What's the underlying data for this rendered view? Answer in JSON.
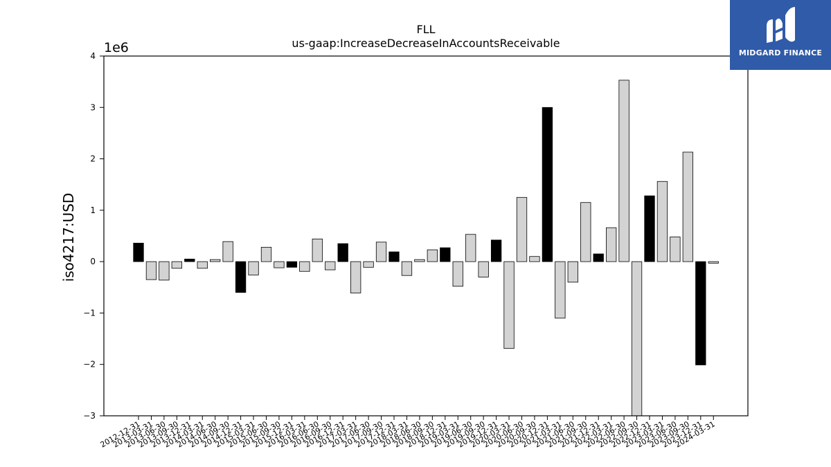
{
  "chart_data": {
    "type": "bar",
    "title": "FLL",
    "subtitle": "us-gaap:IncreaseDecreaseInAccountsReceivable",
    "ylabel": "iso4217:USD",
    "y_offset_label": "1e6",
    "ylim": [
      -3,
      4
    ],
    "y_ticks": [
      -3,
      -2,
      -1,
      0,
      1,
      2,
      3,
      4
    ],
    "y_tick_labels": [
      "−3",
      "−2",
      "−1",
      "0",
      "1",
      "2",
      "3",
      "4"
    ],
    "grid": false,
    "colors": {
      "annual": "#000000",
      "quarterly": "#d3d3d3",
      "edge": "#000000"
    },
    "categories": [
      "2012-12-31",
      "2013-03-31",
      "2013-06-30",
      "2013-09-30",
      "2013-12-31",
      "2014-03-31",
      "2014-06-30",
      "2014-09-30",
      "2014-12-31",
      "2015-03-31",
      "2015-06-30",
      "2015-09-30",
      "2015-12-31",
      "2016-03-31",
      "2016-06-30",
      "2016-09-30",
      "2016-12-31",
      "2017-03-31",
      "2017-06-30",
      "2017-09-30",
      "2017-12-31",
      "2018-03-31",
      "2018-06-30",
      "2018-09-30",
      "2018-12-31",
      "2019-03-31",
      "2019-06-30",
      "2019-09-30",
      "2019-12-31",
      "2020-03-31",
      "2020-06-30",
      "2020-09-30",
      "2020-12-31",
      "2021-03-31",
      "2021-06-30",
      "2021-09-30",
      "2021-12-31",
      "2022-03-31",
      "2022-06-30",
      "2022-09-30",
      "2022-12-31",
      "2023-03-31",
      "2023-06-30",
      "2023-09-30",
      "2023-12-31",
      "2024-03-31"
    ],
    "values": [
      0.36,
      -0.35,
      -0.36,
      -0.13,
      0.05,
      -0.13,
      0.04,
      0.39,
      -0.6,
      -0.26,
      0.28,
      -0.12,
      -0.11,
      -0.19,
      0.44,
      -0.16,
      0.35,
      -0.61,
      -0.11,
      0.38,
      0.19,
      -0.27,
      0.04,
      0.23,
      0.27,
      -0.48,
      0.53,
      -0.3,
      0.42,
      -1.69,
      1.25,
      0.1,
      3.0,
      -1.1,
      -0.4,
      1.15,
      0.15,
      0.66,
      3.53,
      -3.0,
      1.28,
      1.56,
      0.48,
      2.13,
      -2.01,
      -0.03
    ],
    "bar_kind": [
      "annual",
      "q",
      "q",
      "q",
      "annual",
      "q",
      "q",
      "q",
      "annual",
      "q",
      "q",
      "q",
      "annual",
      "q",
      "q",
      "q",
      "annual",
      "q",
      "q",
      "q",
      "annual",
      "q",
      "q",
      "q",
      "annual",
      "q",
      "q",
      "q",
      "annual",
      "q",
      "q",
      "q",
      "annual",
      "q",
      "q",
      "q",
      "annual",
      "q",
      "q",
      "q",
      "annual",
      "q",
      "q",
      "q",
      "annual",
      "q"
    ]
  },
  "logo": {
    "text": "MIDGARD FINANCE"
  }
}
